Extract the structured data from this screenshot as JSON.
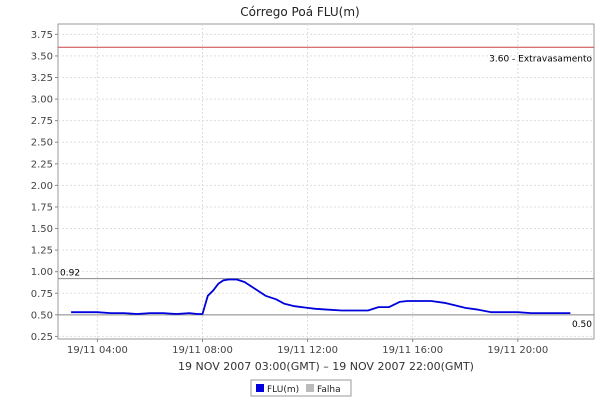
{
  "chart_data": {
    "type": "line",
    "title": "Córrego Poá FLU(m)",
    "xlabel": "19 NOV 2007 03:00(GMT) – 19 NOV 2007 22:00(GMT)",
    "ylabel": "",
    "x_tick_labels": [
      "19/11 04:00",
      "19/11 08:00",
      "19/11 12:00",
      "19/11 16:00",
      "19/11 20:00"
    ],
    "x_tick_hours": [
      4,
      8,
      12,
      16,
      20
    ],
    "xlim_hours": [
      2.5,
      22.9
    ],
    "ylim": [
      0.22,
      3.87
    ],
    "y_ticks": [
      0.25,
      0.5,
      0.75,
      1.0,
      1.25,
      1.5,
      1.75,
      2.0,
      2.25,
      2.5,
      2.75,
      3.0,
      3.25,
      3.5,
      3.75
    ],
    "y_tick_labels": [
      "0.25",
      "0.50",
      "0.75",
      "1.00",
      "1.25",
      "1.50",
      "1.75",
      "2.00",
      "2.25",
      "2.50",
      "2.75",
      "3.00",
      "3.25",
      "3.50",
      "3.75"
    ],
    "grid": true,
    "reference_lines": [
      {
        "value": 3.6,
        "label": "3.60 - Extravasamento",
        "color": "#cc4444"
      },
      {
        "value": 0.92,
        "label": "0.92",
        "color": "#888888"
      },
      {
        "value": 0.5,
        "label": "0.50",
        "color": "#888888"
      }
    ],
    "series": [
      {
        "name": "FLU(m)",
        "color": "#0000dd",
        "hours": [
          3.0,
          3.5,
          4.0,
          4.5,
          5.0,
          5.5,
          6.0,
          6.5,
          7.0,
          7.5,
          7.8,
          8.0,
          8.2,
          8.4,
          8.6,
          8.8,
          9.0,
          9.3,
          9.6,
          10.0,
          10.4,
          10.8,
          11.1,
          11.5,
          12.0,
          12.3,
          12.8,
          13.3,
          13.8,
          14.3,
          14.7,
          15.1,
          15.5,
          15.8,
          16.2,
          16.7,
          17.2,
          17.6,
          18.0,
          18.5,
          19.0,
          19.5,
          20.0,
          20.5,
          21.0,
          21.5,
          22.0
        ],
        "values": [
          0.53,
          0.53,
          0.53,
          0.52,
          0.52,
          0.51,
          0.52,
          0.52,
          0.51,
          0.52,
          0.51,
          0.51,
          0.72,
          0.78,
          0.86,
          0.9,
          0.91,
          0.91,
          0.88,
          0.8,
          0.72,
          0.68,
          0.63,
          0.6,
          0.58,
          0.57,
          0.56,
          0.55,
          0.55,
          0.55,
          0.59,
          0.59,
          0.65,
          0.66,
          0.66,
          0.66,
          0.64,
          0.61,
          0.58,
          0.56,
          0.53,
          0.53,
          0.53,
          0.52,
          0.52,
          0.52,
          0.52
        ]
      },
      {
        "name": "Falha",
        "color": "#bbbbbb",
        "hours": [],
        "values": []
      }
    ],
    "legend_position": "bottom-center"
  }
}
